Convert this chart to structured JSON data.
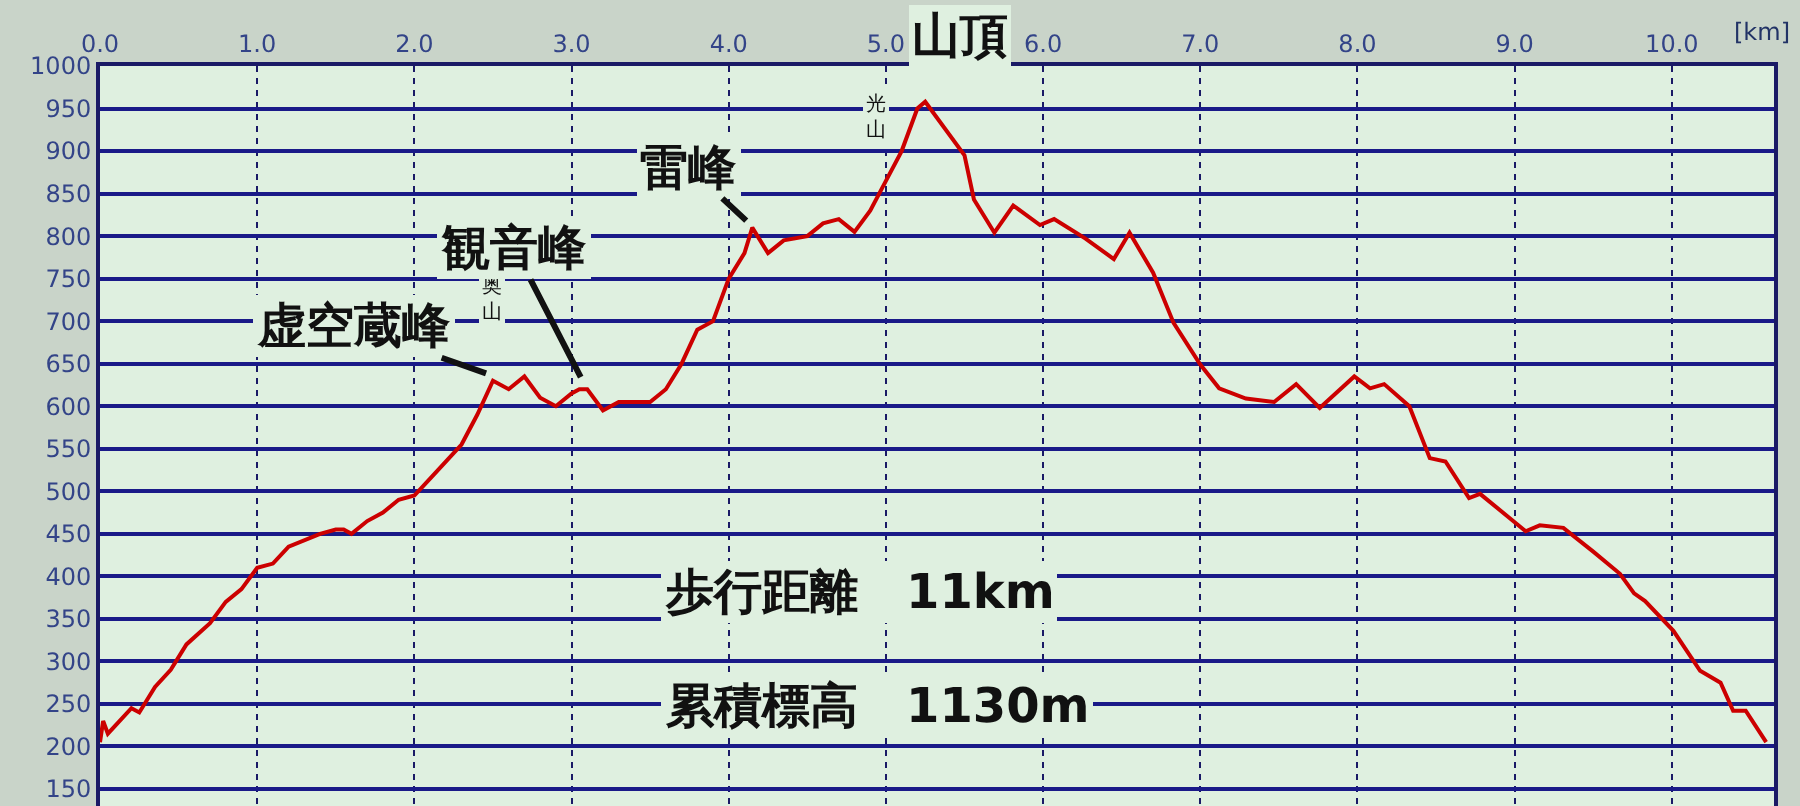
{
  "chart_data": {
    "type": "line",
    "xlabel": "[km]",
    "color": "#cc0000",
    "x": [
      0,
      0.02,
      0.05,
      0.2,
      0.25,
      0.35,
      0.45,
      0.55,
      0.7,
      0.8,
      0.9,
      1.0,
      1.1,
      1.2,
      1.4,
      1.5,
      1.55,
      1.6,
      1.7,
      1.8,
      1.9,
      2.0,
      2.1,
      2.2,
      2.3,
      2.4,
      2.5,
      2.6,
      2.7,
      2.8,
      2.9,
      3.0,
      3.05,
      3.1,
      3.2,
      3.3,
      3.5,
      3.6,
      3.7,
      3.8,
      3.9,
      4.0,
      4.1,
      4.15,
      4.25,
      4.35,
      4.5,
      4.6,
      4.7,
      4.8,
      4.9,
      5.0,
      5.1,
      5.2,
      5.25,
      5.5,
      5.56,
      5.69,
      5.81,
      5.98,
      6.07,
      6.27,
      6.45,
      6.55,
      6.7,
      6.83,
      7.0,
      7.12,
      7.29,
      7.47,
      7.61,
      7.76,
      7.98,
      8.08,
      8.17,
      8.33,
      8.46,
      8.56,
      8.71,
      8.78,
      9.07,
      9.16,
      9.31,
      9.5,
      9.67,
      9.76,
      9.83,
      10.01,
      10.18,
      10.31,
      10.39,
      10.47,
      10.6
    ],
    "values": [
      205,
      230,
      215,
      245,
      240,
      270,
      290,
      320,
      345,
      370,
      385,
      410,
      415,
      435,
      450,
      455,
      455,
      450,
      465,
      475,
      490,
      495,
      515,
      535,
      555,
      590,
      630,
      620,
      635,
      610,
      600,
      615,
      620,
      620,
      595,
      605,
      605,
      620,
      650,
      690,
      700,
      750,
      780,
      810,
      780,
      795,
      800,
      815,
      820,
      805,
      830,
      865,
      900,
      950,
      958,
      895,
      843,
      804,
      836,
      813,
      820,
      797,
      773,
      804,
      757,
      698,
      649,
      621,
      609,
      605,
      626,
      598,
      635,
      621,
      626,
      600,
      539,
      535,
      492,
      497,
      453,
      460,
      457,
      429,
      403,
      380,
      371,
      336,
      289,
      275,
      242,
      242,
      205
    ],
    "xlim": [
      0,
      10.65
    ],
    "ylim": [
      130,
      1000
    ],
    "xticks": [
      {
        "value": 0,
        "label": "0.0"
      },
      {
        "value": 1,
        "label": "1.0"
      },
      {
        "value": 2,
        "label": "2.0"
      },
      {
        "value": 3,
        "label": "3.0"
      },
      {
        "value": 4,
        "label": "4.0"
      },
      {
        "value": 5,
        "label": "5.0"
      },
      {
        "value": 6,
        "label": "6.0"
      },
      {
        "value": 7,
        "label": "7.0"
      },
      {
        "value": 8,
        "label": "8.0"
      },
      {
        "value": 9,
        "label": "9.0"
      },
      {
        "value": 10,
        "label": "10.0"
      }
    ],
    "yticks": [
      150,
      200,
      250,
      300,
      350,
      400,
      450,
      500,
      550,
      600,
      650,
      700,
      750,
      800,
      850,
      900,
      950,
      1000
    ],
    "grid": true,
    "legend": false,
    "marker": "none",
    "line_style": "solid",
    "annotations": [
      {
        "text": "虚空蔵峰",
        "x": 2.48,
        "y": 637
      },
      "奥山",
      {
        "text": "観音峰",
        "x": 3.07,
        "y": 630
      },
      {
        "text": "雷峰",
        "x": 4.13,
        "y": 815
      },
      {
        "text": "山頂",
        "x": 5.25,
        "y": 958
      },
      "光山",
      "歩行距離　11km",
      "累積標高　1130m"
    ]
  }
}
